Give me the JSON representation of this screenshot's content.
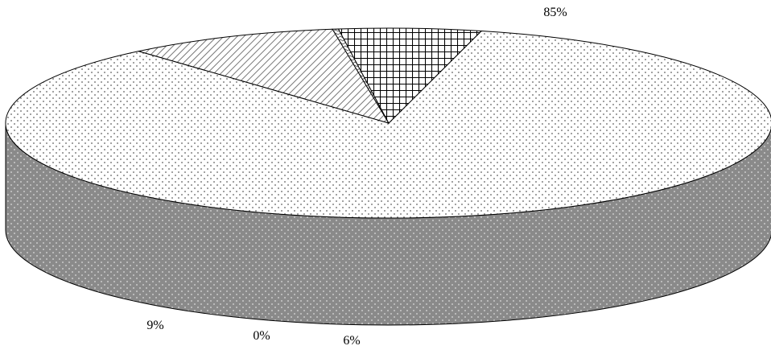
{
  "chart_data": {
    "type": "pie",
    "style": "3d-exploded-pie",
    "categories": [
      "",
      "",
      "",
      ""
    ],
    "values": [
      85,
      9,
      0,
      6
    ],
    "labels": [
      "85%",
      "9%",
      "0%",
      "6%"
    ],
    "title": "",
    "legend": "none",
    "colors": {
      "top_background": "#ffffff",
      "side_background": "#888888",
      "outline": "#000000"
    },
    "fill_patterns": [
      "dotted",
      "diagonal-hatch",
      "zigzag",
      "grid"
    ]
  }
}
